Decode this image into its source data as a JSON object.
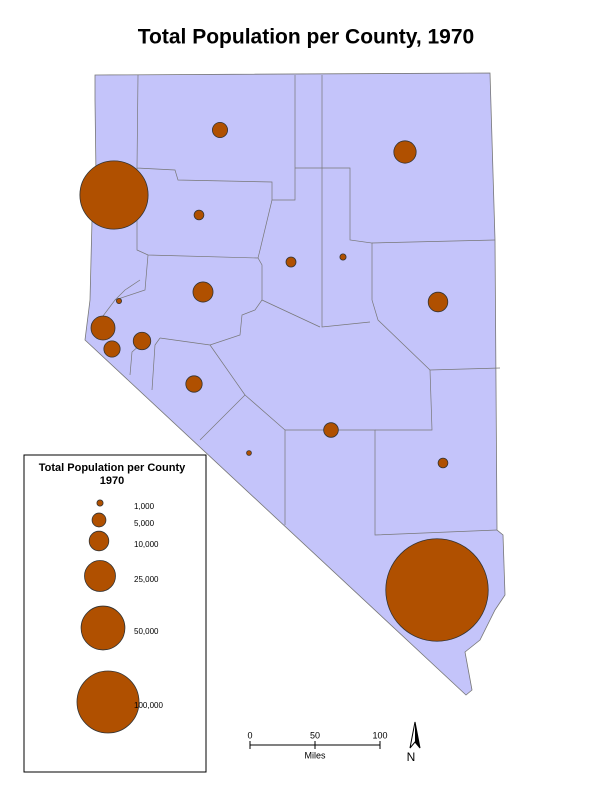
{
  "title": "Total Population per County, 1970",
  "symbols": [
    6000,
    13000,
    121000,
    2500,
    2600,
    1000,
    10000,
    10500,
    700,
    15000,
    6900,
    8000,
    7000,
    5600,
    600,
    2500,
    273000
  ],
  "legend": {
    "title_lines": [
      "Total Population per County",
      "1970"
    ],
    "items": [
      {
        "value": 1000,
        "label": "1,000"
      },
      {
        "value": 5000,
        "label": "5,000"
      },
      {
        "value": 10000,
        "label": "10,000"
      },
      {
        "value": 25000,
        "label": "25,000"
      },
      {
        "value": 50000,
        "label": "50,000"
      },
      {
        "value": 100000,
        "label": "100,000"
      }
    ]
  },
  "scale_bar": {
    "ticks": [
      0,
      50,
      100
    ],
    "unit": "Miles"
  },
  "north_arrow": "N"
}
